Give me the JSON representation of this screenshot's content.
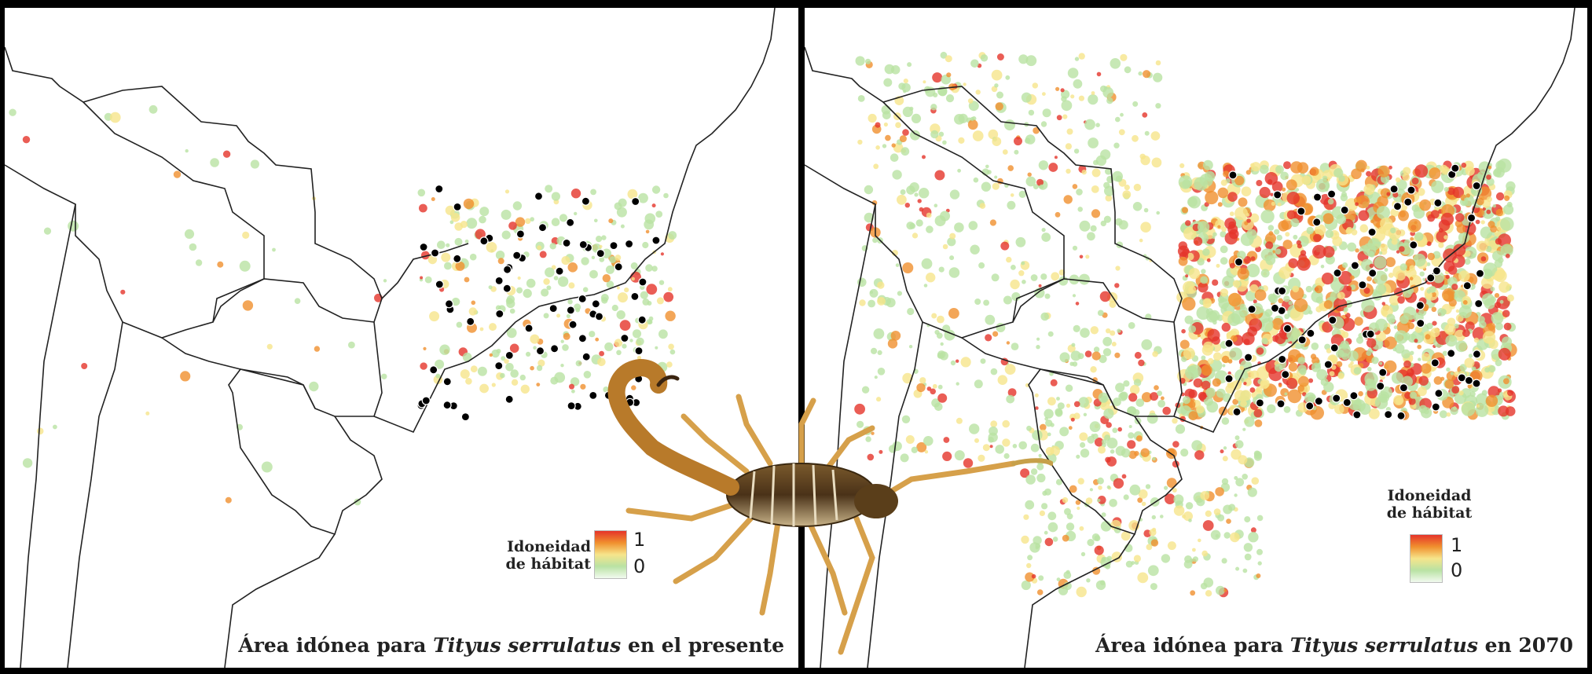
{
  "maps": [
    {
      "caption_prefix": "Área idónea para ",
      "caption_species": "Tityus serrulatus",
      "caption_suffix": " en el presente",
      "legend_title_line1": "Idoneidad",
      "legend_title_line2": "de hábitat",
      "legend_max": "1",
      "legend_min": "0"
    },
    {
      "caption_prefix": "Área idónea para ",
      "caption_species": "Tityus serrulatus",
      "caption_suffix": " en 2070",
      "legend_title_line1": "Idoneidad",
      "legend_title_line2": "de hábitat",
      "legend_max": "1",
      "legend_min": "0"
    }
  ],
  "colors": {
    "high": "#e5342a",
    "mid": "#f6e58b",
    "low": "#b9e2a3",
    "zero": "#f2faef",
    "occurrence": "#000000",
    "border": "#222222"
  },
  "icons": [
    "scorpion-photo"
  ]
}
